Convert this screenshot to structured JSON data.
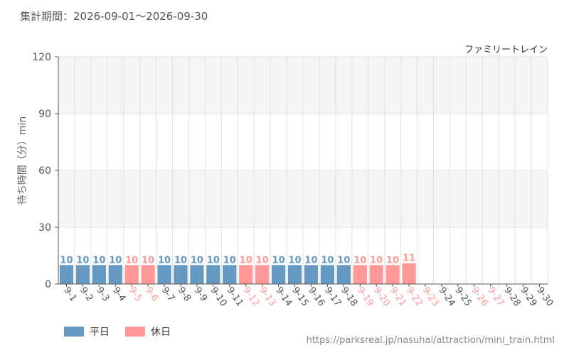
{
  "header": {
    "period_text": "集計期間：2026-09-01～2026-09-30"
  },
  "colors": {
    "weekday": "#6699c2",
    "holiday": "#ff9999",
    "grid": "#e2e2e2",
    "band": "#f5f5f5"
  },
  "legend": {
    "weekday_label": "平日",
    "holiday_label": "休日"
  },
  "footer": {
    "source_url": "https://parksreal.jp/nasuhai/attraction/mini_train.html"
  },
  "chart_data": {
    "type": "bar",
    "title": "ファミリートレイン",
    "ylabel": "待ち時間（分）min",
    "ylim": [
      0,
      120
    ],
    "yticks": [
      0,
      30,
      60,
      90,
      120
    ],
    "grid": true,
    "legend_position": "bottom-left",
    "categories": [
      "9-1",
      "9-2",
      "9-3",
      "9-4",
      "9-5",
      "9-6",
      "9-7",
      "9-8",
      "9-9",
      "9-10",
      "9-11",
      "9-12",
      "9-13",
      "9-14",
      "9-15",
      "9-16",
      "9-17",
      "9-18",
      "9-19",
      "9-20",
      "9-21",
      "9-22",
      "9-23",
      "9-24",
      "9-25",
      "9-26",
      "9-27",
      "9-28",
      "9-29",
      "9-30"
    ],
    "values": [
      10,
      10,
      10,
      10,
      10,
      10,
      10,
      10,
      10,
      10,
      10,
      10,
      10,
      10,
      10,
      10,
      10,
      10,
      10,
      10,
      10,
      11,
      null,
      null,
      null,
      null,
      null,
      null,
      null,
      null
    ],
    "day_type": [
      "weekday",
      "weekday",
      "weekday",
      "weekday",
      "holiday",
      "holiday",
      "weekday",
      "weekday",
      "weekday",
      "weekday",
      "weekday",
      "holiday",
      "holiday",
      "weekday",
      "weekday",
      "weekday",
      "weekday",
      "weekday",
      "holiday",
      "holiday",
      "holiday",
      "holiday",
      "holiday",
      "weekday",
      "weekday",
      "holiday",
      "holiday",
      "weekday",
      "weekday",
      "weekday"
    ]
  }
}
